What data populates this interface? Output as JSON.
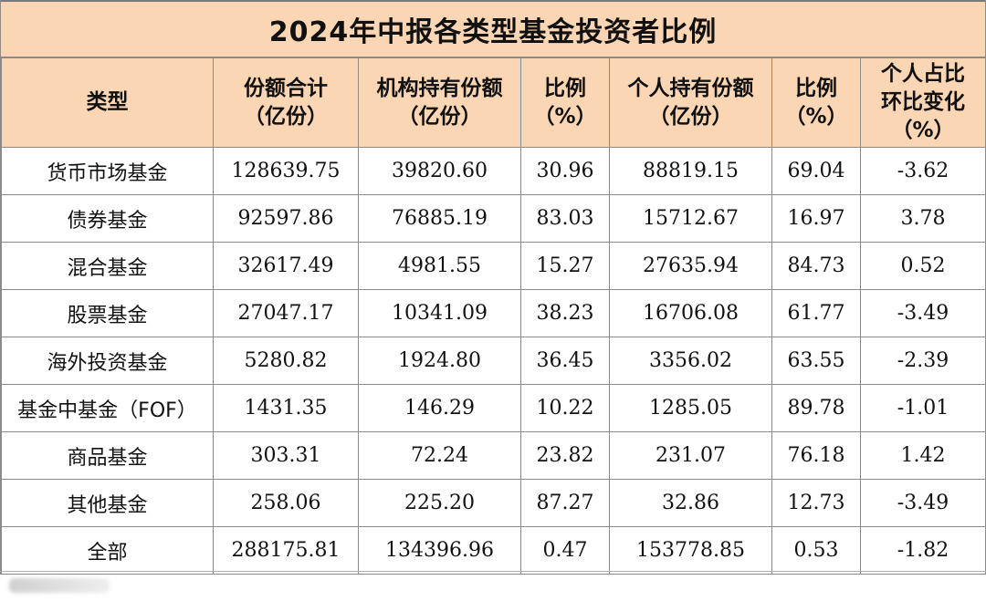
{
  "title": "2024年中报各类型基金投资者比例",
  "headers": [
    [
      "类型"
    ],
    [
      "份额合计",
      "（亿份）"
    ],
    [
      "机构持有份额",
      "（亿份）"
    ],
    [
      "比例",
      "（%）"
    ],
    [
      "个人持有份额",
      "（亿份）"
    ],
    [
      "比例",
      "（%）"
    ],
    [
      "个人占比",
      "环比变化",
      "（%）"
    ]
  ],
  "rows": [
    [
      "货币市场基金",
      "128639.75",
      "39820.60",
      "30.96",
      "88819.15",
      "69.04",
      "-3.62"
    ],
    [
      "债券基金",
      "92597.86",
      "76885.19",
      "83.03",
      "15712.67",
      "16.97",
      "3.78"
    ],
    [
      "混合基金",
      "32617.49",
      "4981.55",
      "15.27",
      "27635.94",
      "84.73",
      "0.52"
    ],
    [
      "股票基金",
      "27047.17",
      "10341.09",
      "38.23",
      "16706.08",
      "61.77",
      "-3.49"
    ],
    [
      "海外投资基金",
      "5280.82",
      "1924.80",
      "36.45",
      "3356.02",
      "63.55",
      "-2.39"
    ],
    [
      "基金中基金（FOF）",
      "1431.35",
      "146.29",
      "10.22",
      "1285.05",
      "89.78",
      "-1.01"
    ],
    [
      "商品基金",
      "303.31",
      "72.24",
      "23.82",
      "231.07",
      "76.18",
      "1.42"
    ],
    [
      "其他基金",
      "258.06",
      "225.20",
      "87.27",
      "32.86",
      "12.73",
      "-3.49"
    ],
    [
      "全部",
      "288175.81",
      "134396.96",
      "0.47",
      "153778.85",
      "0.53",
      "-1.82"
    ]
  ],
  "colors": {
    "header_bg": "#fbd6b5",
    "border": "#8a8a8a"
  }
}
